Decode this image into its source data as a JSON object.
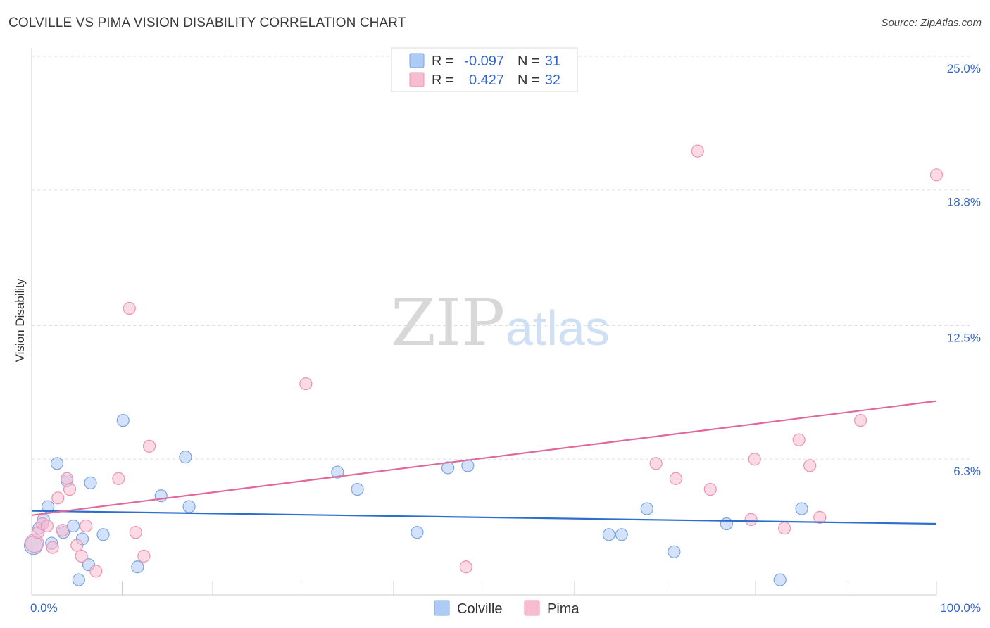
{
  "title": "COLVILLE VS PIMA VISION DISABILITY CORRELATION CHART",
  "source": "Source: ZipAtlas.com",
  "colors": {
    "colville_fill": "#aecbf5",
    "colville_stroke": "#7aa5e0",
    "colville_line": "#2f6fcc",
    "pima_fill": "#f8bcd0",
    "pima_stroke": "#ec93b3",
    "pima_line": "#e0699a",
    "axis_label": "#3366cc",
    "grid": "#dddddd"
  },
  "chart_data": {
    "type": "scatter",
    "title": "COLVILLE VS PIMA VISION DISABILITY CORRELATION CHART",
    "xlabel": "",
    "ylabel": "Vision Disability",
    "xlim": [
      0,
      100
    ],
    "ylim": [
      0,
      25
    ],
    "x_tick_labels": [
      "0.0%",
      "100.0%"
    ],
    "y_ticks": [
      6.3,
      12.5,
      18.8,
      25.0
    ],
    "y_tick_labels": [
      "6.3%",
      "12.5%",
      "18.8%",
      "25.0%"
    ],
    "legend_stats": [
      {
        "series": "Colville",
        "r_label": "R =",
        "r": "-0.097",
        "n_label": "N =",
        "n": "31"
      },
      {
        "series": "Pima",
        "r_label": "R =",
        "r": "0.427",
        "n_label": "N =",
        "n": "32"
      }
    ],
    "series": [
      {
        "name": "Colville",
        "trend": {
          "x": [
            0,
            100
          ],
          "y": [
            3.9,
            3.3
          ]
        },
        "points": [
          {
            "x": 0.2,
            "y": 2.3,
            "big": true
          },
          {
            "x": 0.8,
            "y": 3.1
          },
          {
            "x": 1.3,
            "y": 3.5
          },
          {
            "x": 1.8,
            "y": 4.1
          },
          {
            "x": 2.2,
            "y": 2.4
          },
          {
            "x": 2.8,
            "y": 6.1
          },
          {
            "x": 3.5,
            "y": 2.9
          },
          {
            "x": 3.9,
            "y": 5.3
          },
          {
            "x": 4.6,
            "y": 3.2
          },
          {
            "x": 5.2,
            "y": 0.7
          },
          {
            "x": 5.6,
            "y": 2.6
          },
          {
            "x": 6.3,
            "y": 1.4
          },
          {
            "x": 6.5,
            "y": 5.2
          },
          {
            "x": 7.9,
            "y": 2.8
          },
          {
            "x": 10.1,
            "y": 8.1
          },
          {
            "x": 11.7,
            "y": 1.3
          },
          {
            "x": 14.3,
            "y": 4.6
          },
          {
            "x": 17.0,
            "y": 6.4
          },
          {
            "x": 17.4,
            "y": 4.1
          },
          {
            "x": 33.8,
            "y": 5.7
          },
          {
            "x": 36.0,
            "y": 4.9
          },
          {
            "x": 42.6,
            "y": 2.9
          },
          {
            "x": 46.0,
            "y": 5.9
          },
          {
            "x": 48.2,
            "y": 6.0
          },
          {
            "x": 63.8,
            "y": 2.8
          },
          {
            "x": 65.2,
            "y": 2.8
          },
          {
            "x": 68.0,
            "y": 4.0
          },
          {
            "x": 71.0,
            "y": 2.0
          },
          {
            "x": 76.8,
            "y": 3.3
          },
          {
            "x": 82.7,
            "y": 0.7
          },
          {
            "x": 85.1,
            "y": 4.0
          }
        ]
      },
      {
        "name": "Pima",
        "trend": {
          "x": [
            0,
            100
          ],
          "y": [
            3.7,
            9.0
          ]
        },
        "points": [
          {
            "x": 0.3,
            "y": 2.4,
            "big": true
          },
          {
            "x": 0.7,
            "y": 2.9
          },
          {
            "x": 1.2,
            "y": 3.3
          },
          {
            "x": 1.7,
            "y": 3.2
          },
          {
            "x": 2.3,
            "y": 2.2
          },
          {
            "x": 2.9,
            "y": 4.5
          },
          {
            "x": 3.4,
            "y": 3.0
          },
          {
            "x": 3.9,
            "y": 5.4
          },
          {
            "x": 4.2,
            "y": 4.9
          },
          {
            "x": 5.0,
            "y": 2.3
          },
          {
            "x": 5.5,
            "y": 1.8
          },
          {
            "x": 6.0,
            "y": 3.2
          },
          {
            "x": 7.1,
            "y": 1.1
          },
          {
            "x": 9.6,
            "y": 5.4
          },
          {
            "x": 10.8,
            "y": 13.3
          },
          {
            "x": 11.5,
            "y": 2.9
          },
          {
            "x": 12.4,
            "y": 1.8
          },
          {
            "x": 13.0,
            "y": 6.9
          },
          {
            "x": 30.3,
            "y": 9.8
          },
          {
            "x": 48.0,
            "y": 1.3
          },
          {
            "x": 69.0,
            "y": 6.1
          },
          {
            "x": 71.2,
            "y": 5.4
          },
          {
            "x": 73.6,
            "y": 20.6
          },
          {
            "x": 75.0,
            "y": 4.9
          },
          {
            "x": 79.5,
            "y": 3.5
          },
          {
            "x": 79.9,
            "y": 6.3
          },
          {
            "x": 83.2,
            "y": 3.1
          },
          {
            "x": 84.8,
            "y": 7.2
          },
          {
            "x": 86.0,
            "y": 6.0
          },
          {
            "x": 87.1,
            "y": 3.6
          },
          {
            "x": 91.6,
            "y": 8.1
          },
          {
            "x": 100.0,
            "y": 19.5
          }
        ]
      }
    ]
  },
  "legend": {
    "colville_label": "Colville",
    "pima_label": "Pima"
  },
  "watermark": {
    "zip": "ZIP",
    "atlas": "atlas"
  }
}
